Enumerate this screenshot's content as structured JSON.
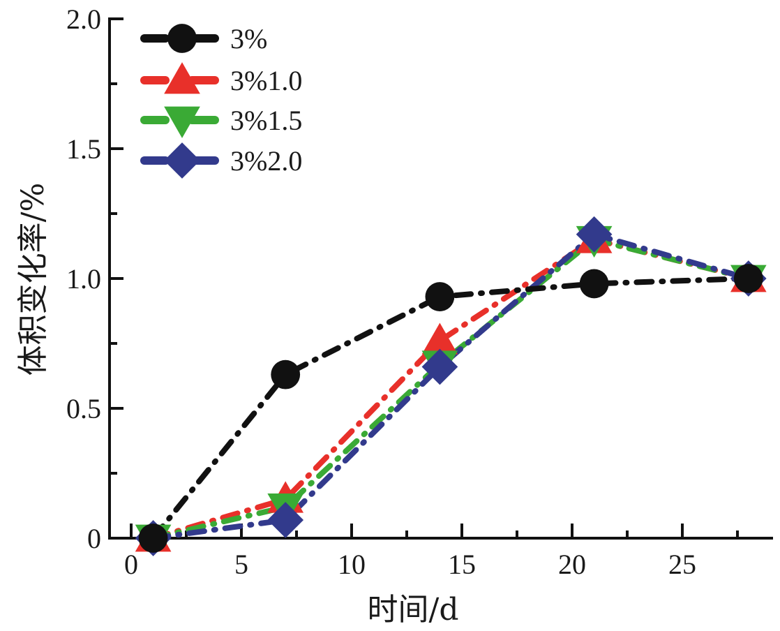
{
  "chart_data": {
    "type": "line",
    "title": "",
    "xlabel": "时间/d",
    "ylabel": "体积变化率/%",
    "xlim": [
      -1,
      29
    ],
    "ylim": [
      0,
      2.0
    ],
    "xticks": [
      0,
      5,
      10,
      15,
      20,
      25
    ],
    "xtick_labels": [
      "0",
      "5",
      "10",
      "15",
      "20",
      "25"
    ],
    "yticks": [
      0,
      0.5,
      1.0,
      1.5,
      2.0
    ],
    "ytick_labels": [
      "0",
      "0.5",
      "1.0",
      "1.5",
      "2.0"
    ],
    "grid": false,
    "legend_position": "top-left",
    "x": [
      1,
      7,
      14,
      21,
      28
    ],
    "series": [
      {
        "name": "3%",
        "color": "#111111",
        "marker": "circle",
        "dash": "dash-dot",
        "values": [
          0.0,
          0.63,
          0.93,
          0.98,
          1.0
        ]
      },
      {
        "name": "3%1.0",
        "color": "#e8302a",
        "marker": "triangle-up",
        "dash": "dash-dot",
        "values": [
          0.0,
          0.15,
          0.76,
          1.15,
          1.0
        ]
      },
      {
        "name": "3%1.5",
        "color": "#3aaa35",
        "marker": "triangle-down",
        "dash": "dash-dot",
        "values": [
          0.0,
          0.12,
          0.67,
          1.15,
          1.0
        ]
      },
      {
        "name": "3%2.0",
        "color": "#323a8c",
        "marker": "diamond",
        "dash": "dash-dot",
        "values": [
          0.0,
          0.07,
          0.66,
          1.17,
          1.0
        ]
      }
    ]
  }
}
